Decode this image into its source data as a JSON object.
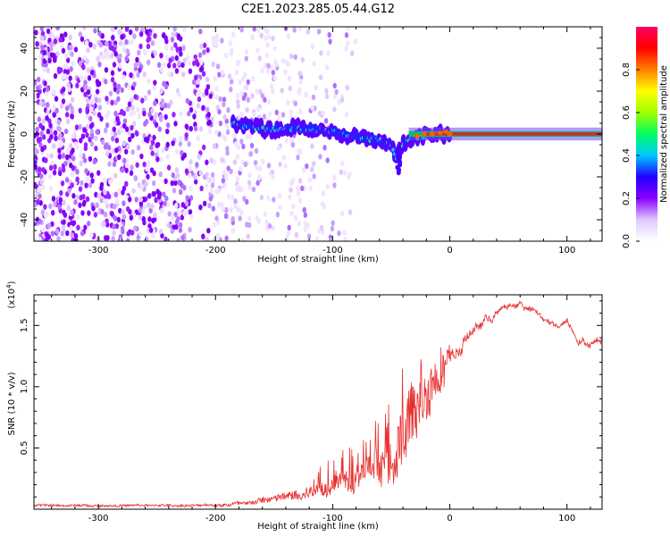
{
  "title": "C2E1.2023.285.05.44.G12",
  "chart_data": [
    {
      "type": "heatmap",
      "xlabel": "Height of straight line (km)",
      "ylabel": "Frequency (Hz)",
      "xlim": [
        -355,
        130
      ],
      "ylim": [
        -50,
        50
      ],
      "xticks": [
        -300,
        -200,
        -100,
        0,
        100
      ],
      "xtick_labels": [
        "-300",
        "-200",
        "-100",
        "0",
        "100"
      ],
      "yticks": [
        -40,
        -20,
        0,
        20,
        40
      ],
      "ytick_labels": [
        "-40",
        "-20",
        "0",
        "20",
        "40"
      ],
      "colorbar": {
        "label": "Normalized spectral amplitude",
        "range": [
          0,
          1
        ],
        "ticks": [
          0.0,
          0.2,
          0.4,
          0.6,
          0.8
        ],
        "tick_labels": [
          "0.0",
          "0.2",
          "0.4",
          "0.6",
          "0.8"
        ],
        "colors": [
          "#ffffff",
          "#e0c8ff",
          "#8a00ff",
          "#2000ff",
          "#00c8ff",
          "#00ff60",
          "#a0ff00",
          "#ffff00",
          "#ff8000",
          "#ff0000",
          "#ff0060"
        ]
      },
      "ridge": {
        "description_points": [
          [
            -185,
            5
          ],
          [
            -170,
            3
          ],
          [
            -150,
            2
          ],
          [
            -130,
            3
          ],
          [
            -110,
            2
          ],
          [
            -90,
            0
          ],
          [
            -75,
            -2
          ],
          [
            -60,
            -3
          ],
          [
            -50,
            -5
          ],
          [
            -45,
            -12
          ],
          [
            -40,
            -4
          ],
          [
            -30,
            -2
          ],
          [
            -15,
            0
          ],
          [
            0,
            0
          ],
          [
            50,
            0
          ],
          [
            130,
            0
          ]
        ],
        "noise_region_x": [
          -355,
          -140
        ]
      }
    },
    {
      "type": "line",
      "xlabel": "Height of straight line (km)",
      "ylabel": "SNR (10 * v/v)",
      "y_multiplier_label": "(x10",
      "y_multiplier_exp": "4",
      "y_multiplier_close": ")",
      "xlim": [
        -355,
        130
      ],
      "ylim": [
        0,
        17500
      ],
      "xticks": [
        -300,
        -200,
        -100,
        0,
        100
      ],
      "xtick_labels": [
        "-300",
        "-200",
        "-100",
        "0",
        "100"
      ],
      "yticks": [
        5000,
        10000,
        15000
      ],
      "ytick_labels": [
        "0.5",
        "1.0",
        "1.5"
      ],
      "series": [
        {
          "name": "SNR",
          "color": "#e83030",
          "envelope": {
            "x": [
              -355,
              -300,
              -250,
              -200,
              -180,
              -160,
              -140,
              -120,
              -100,
              -80,
              -60,
              -50,
              -40,
              -30,
              -25,
              -20,
              -10,
              0,
              10,
              20,
              30,
              40,
              50,
              60,
              70,
              80,
              90,
              100,
              110,
              120,
              130
            ],
            "y": [
              300,
              300,
              300,
              300,
              500,
              700,
              1000,
              1500,
              2000,
              2500,
              3200,
              4000,
              5500,
              7500,
              9000,
              10000,
              11500,
              12500,
              13500,
              14500,
              15500,
              16000,
              16500,
              16800,
              16200,
              15500,
              14800,
              15500,
              14000,
              13500,
              14000
            ],
            "noise": [
              100,
              100,
              100,
              120,
              200,
              300,
              400,
              600,
              800,
              1000,
              1500,
              2000,
              3000,
              3500,
              3000,
              2500,
              2200,
              1800,
              1500,
              1200,
              1000,
              900,
              800,
              700,
              700,
              700,
              700,
              700,
              800,
              800,
              800
            ]
          }
        }
      ]
    }
  ]
}
